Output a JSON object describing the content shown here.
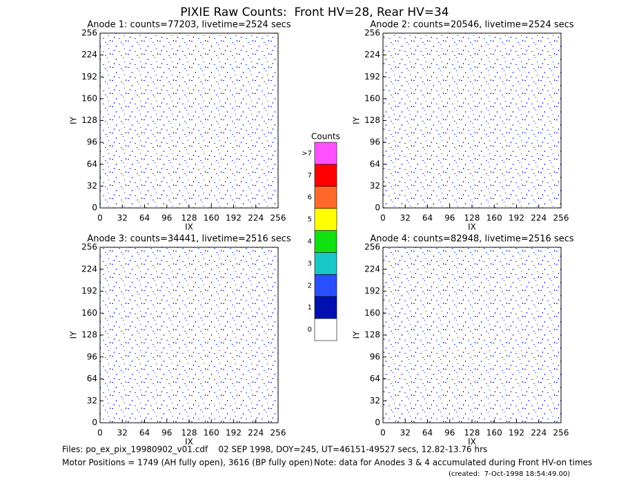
{
  "title": "PIXIE Raw Counts:  Front HV=28, Rear HV=34",
  "chart_data": [
    {
      "type": "heatmap",
      "title": "Anode 1: counts=77203, livetime=2524 secs",
      "xlabel": "IX",
      "ylabel": "IY",
      "xlim": [
        0,
        256
      ],
      "ylim": [
        0,
        256
      ],
      "xticks": [
        0,
        32,
        64,
        96,
        128,
        160,
        192,
        224,
        256
      ],
      "yticks": [
        0,
        32,
        64,
        96,
        128,
        160,
        192,
        224,
        256
      ]
    },
    {
      "type": "heatmap",
      "title": "Anode 2: counts=20546, livetime=2524 secs",
      "xlabel": "IX",
      "ylabel": "IY",
      "xlim": [
        0,
        256
      ],
      "ylim": [
        0,
        256
      ],
      "xticks": [
        0,
        32,
        64,
        96,
        128,
        160,
        192,
        224,
        256
      ],
      "yticks": [
        0,
        32,
        64,
        96,
        128,
        160,
        192,
        224,
        256
      ]
    },
    {
      "type": "heatmap",
      "title": "Anode 3: counts=34441, livetime=2516 secs",
      "xlabel": "IX",
      "ylabel": "IY",
      "xlim": [
        0,
        256
      ],
      "ylim": [
        0,
        256
      ],
      "xticks": [
        0,
        32,
        64,
        96,
        128,
        160,
        192,
        224,
        256
      ],
      "yticks": [
        0,
        32,
        64,
        96,
        128,
        160,
        192,
        224,
        256
      ]
    },
    {
      "type": "heatmap",
      "title": "Anode 4: counts=82948, livetime=2516 secs",
      "xlabel": "IX",
      "ylabel": "IY",
      "xlim": [
        0,
        256
      ],
      "ylim": [
        0,
        256
      ],
      "xticks": [
        0,
        32,
        64,
        96,
        128,
        160,
        192,
        224,
        256
      ],
      "yticks": [
        0,
        32,
        64,
        96,
        128,
        160,
        192,
        224,
        256
      ]
    }
  ],
  "colorbar": {
    "title": "Counts",
    "labels": [
      "0",
      "1",
      "2",
      "3",
      "4",
      "5",
      "6",
      "7",
      ">7"
    ],
    "colors": [
      "#ffffff",
      "#0010b0",
      "#2850ff",
      "#18c8c8",
      "#10e010",
      "#ffff00",
      "#ff6828",
      "#ff0000",
      "#ff50ff"
    ]
  },
  "footer": {
    "files": "Files: po_ex_pix_19980902_v01.cdf    02 SEP 1998, DOY=245, UT=46151-49527 secs, 12.82-13.76 hrs",
    "motor": "Motor Positions = 1749 (AH fully open), 3616 (BP fully open)",
    "note": "Note: data for Anodes 3 & 4 accumulated during Front HV-on times",
    "created": "(created:  7-Oct-1998 18:54:49.00)"
  }
}
